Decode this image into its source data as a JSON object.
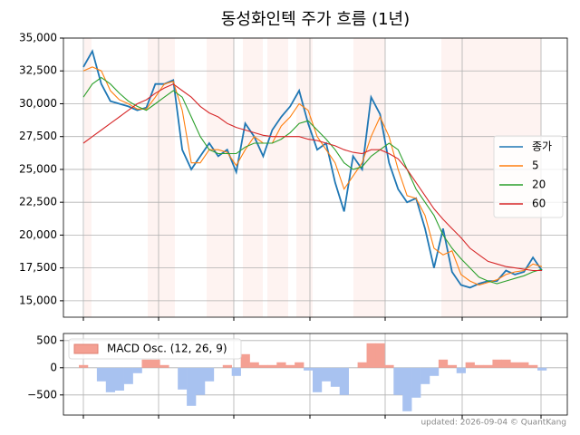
{
  "chart_data": [
    {
      "type": "line",
      "title": "동성화인텍 주가 흐름 (1년)",
      "categories": [
        null,
        null,
        null,
        null,
        null,
        null,
        null,
        null,
        null,
        null,
        null,
        null,
        null,
        null,
        null,
        null,
        null,
        null,
        null,
        null,
        null,
        null,
        null,
        null,
        null,
        null,
        null,
        null,
        null,
        null,
        null,
        null,
        null,
        null,
        null,
        null,
        null,
        null,
        null,
        null,
        null,
        null,
        null,
        null,
        null,
        null,
        null,
        null,
        null,
        null,
        null,
        null
      ],
      "series": [
        {
          "name": "종가",
          "color": "#1f77b4",
          "values": [
            32800,
            34000,
            31500,
            30200,
            30000,
            29800,
            29500,
            29700,
            31500,
            31500,
            31800,
            26500,
            25000,
            26000,
            27000,
            26000,
            26500,
            24800,
            28500,
            27500,
            26000,
            28000,
            29000,
            29800,
            31000,
            28500,
            26500,
            27000,
            24000,
            21800,
            26000,
            25000,
            30500,
            29200,
            25500,
            23500,
            22500,
            22800,
            20500,
            17500,
            20500,
            17200,
            16200,
            16000,
            16300,
            16500,
            16500,
            17300,
            17000,
            17200,
            18300,
            17300
          ]
        },
        {
          "name": "5",
          "color": "#ff7f0e",
          "values": [
            32500,
            32800,
            32500,
            31000,
            30300,
            30000,
            29600,
            29600,
            30500,
            31500,
            31700,
            29500,
            25500,
            25500,
            26500,
            26500,
            26300,
            25300,
            26500,
            27500,
            27000,
            27000,
            28300,
            29000,
            30000,
            29500,
            27500,
            26500,
            25500,
            23500,
            24500,
            25500,
            27500,
            29000,
            27500,
            25000,
            23000,
            22800,
            21500,
            19000,
            18500,
            18800,
            17000,
            16500,
            16200,
            16400,
            16600,
            17000,
            17200,
            17300,
            17800,
            17600
          ]
        },
        {
          "name": "20",
          "color": "#2ca02c",
          "values": [
            30500,
            31500,
            32000,
            31500,
            30800,
            30200,
            29800,
            29500,
            30000,
            30500,
            31000,
            30500,
            29000,
            27500,
            26500,
            26200,
            26200,
            26200,
            26700,
            27000,
            27000,
            27000,
            27300,
            27800,
            28500,
            28700,
            28000,
            27300,
            26500,
            25500,
            25000,
            25200,
            26000,
            26500,
            27000,
            26500,
            25000,
            23500,
            22500,
            21500,
            20000,
            19000,
            18200,
            17500,
            16800,
            16500,
            16300,
            16500,
            16700,
            16900,
            17200,
            17400
          ]
        },
        {
          "name": "60",
          "color": "#d62728",
          "values": [
            27000,
            27500,
            28000,
            28500,
            29000,
            29500,
            30000,
            30300,
            30800,
            31200,
            31500,
            31000,
            30500,
            29800,
            29300,
            29000,
            28500,
            28200,
            28000,
            27800,
            27600,
            27500,
            27500,
            27500,
            27500,
            27300,
            27200,
            27000,
            26800,
            26500,
            26300,
            26200,
            26500,
            26500,
            26200,
            25800,
            25000,
            24000,
            23000,
            22000,
            21200,
            20500,
            19800,
            19000,
            18500,
            18000,
            17800,
            17600,
            17500,
            17400,
            17300,
            17300
          ]
        }
      ],
      "ylim": [
        13750,
        35000
      ],
      "yticks": [
        {
          "value": 15000,
          "label": "15,000"
        },
        {
          "value": 17500,
          "label": "17,500"
        },
        {
          "value": 20000,
          "label": "20,000"
        },
        {
          "value": 22500,
          "label": "22,500"
        },
        {
          "value": 25000,
          "label": "25,000"
        },
        {
          "value": 27500,
          "label": "27,500"
        },
        {
          "value": 30000,
          "label": "30,000"
        },
        {
          "value": 32500,
          "label": "32,500"
        },
        {
          "value": 35000,
          "label": "35,000"
        }
      ],
      "grid": true,
      "legend": "right"
    },
    {
      "type": "bar",
      "categories": [
        null,
        null,
        null,
        null,
        null,
        null,
        null,
        null,
        null,
        null,
        null,
        null,
        null,
        null,
        null,
        null,
        null,
        null,
        null,
        null,
        null,
        null,
        null,
        null,
        null,
        null,
        null,
        null,
        null,
        null,
        null,
        null,
        null,
        null,
        null,
        null,
        null,
        null,
        null,
        null,
        null,
        null,
        null,
        null,
        null,
        null,
        null,
        null,
        null,
        null,
        null,
        null
      ],
      "series": [
        {
          "name": "MACD Osc. (12, 26, 9)",
          "color": "#f4a093",
          "negative_color": "#a8c2f0",
          "values": [
            50,
            0,
            -250,
            -450,
            -420,
            -300,
            -100,
            150,
            150,
            50,
            0,
            -400,
            -700,
            -500,
            -250,
            0,
            50,
            -150,
            250,
            100,
            50,
            50,
            100,
            50,
            100,
            -50,
            -450,
            -250,
            -350,
            -500,
            0,
            100,
            450,
            450,
            50,
            -500,
            -800,
            -550,
            -300,
            -150,
            150,
            50,
            -100,
            100,
            50,
            50,
            150,
            150,
            100,
            100,
            50,
            -50
          ]
        }
      ],
      "ylim": [
        -870,
        630
      ],
      "yticks": [
        {
          "value": -500,
          "label": "−500"
        },
        0,
        500
      ],
      "grid": true,
      "legend": "upper left",
      "footer": "updated: 2026-09-04 © QuantKang"
    }
  ]
}
